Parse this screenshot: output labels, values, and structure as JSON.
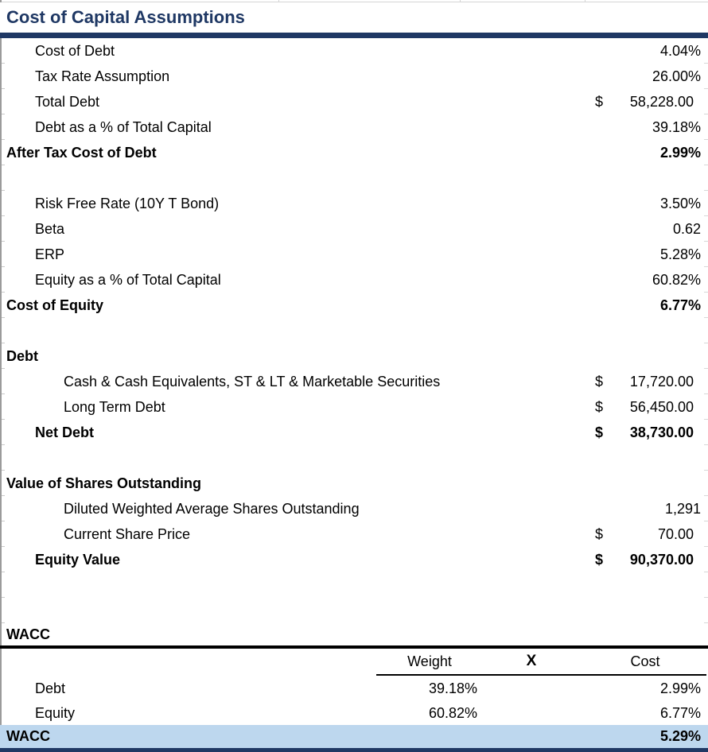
{
  "title": "Cost of Capital Assumptions",
  "colors": {
    "navy": "#1f3864",
    "highlight_blue": "#bdd7ee",
    "gridline_gray": "#d4d4d4"
  },
  "rows": [
    {
      "label": "Cost of Debt",
      "indent": 1,
      "value": "4.04%"
    },
    {
      "label": "Tax Rate Assumption",
      "indent": 1,
      "value": "26.00%"
    },
    {
      "label": "Total Debt",
      "indent": 1,
      "currency": "$",
      "value": "58,228.00"
    },
    {
      "label": "Debt as a % of Total Capital",
      "indent": 1,
      "value": "39.18%"
    },
    {
      "label": "After Tax Cost of Debt",
      "indent": 0,
      "bold": true,
      "value": "2.99%"
    },
    {
      "blank": true
    },
    {
      "label": "Risk Free Rate (10Y T Bond)",
      "indent": 1,
      "value": "3.50%"
    },
    {
      "label": "Beta",
      "indent": 1,
      "value": "0.62"
    },
    {
      "label": "ERP",
      "indent": 1,
      "value": "5.28%"
    },
    {
      "label": "Equity as a % of Total Capital",
      "indent": 1,
      "value": "60.82%"
    },
    {
      "label": "Cost of Equity",
      "indent": 0,
      "bold": true,
      "value": "6.77%"
    },
    {
      "blank": true
    },
    {
      "label": "Debt",
      "indent": 0,
      "bold": true
    },
    {
      "label": "Cash & Cash Equivalents, ST & LT & Marketable Securities",
      "indent": 2,
      "currency": "$",
      "value": "17,720.00"
    },
    {
      "label": "Long Term Debt",
      "indent": 2,
      "currency": "$",
      "value": "56,450.00"
    },
    {
      "label": "Net Debt",
      "indent": 1,
      "bold": true,
      "currency": "$",
      "value": "38,730.00"
    },
    {
      "blank": true
    },
    {
      "label": "Value of Shares Outstanding",
      "indent": 0,
      "bold": true
    },
    {
      "label": "Diluted Weighted Average Shares Outstanding",
      "indent": 2,
      "value": "1,291"
    },
    {
      "label": "Current Share Price",
      "indent": 2,
      "currency": "$",
      "value": "70.00"
    },
    {
      "label": "Equity Value",
      "indent": 1,
      "bold": true,
      "currency": "$",
      "value": "90,370.00"
    },
    {
      "blank": true
    },
    {
      "blank": true
    }
  ],
  "wacc_table": {
    "section_label": "WACC",
    "headers": {
      "weight": "Weight",
      "multiply": "X",
      "cost": "Cost"
    },
    "rows": [
      {
        "label": "Debt",
        "weight": "39.18%",
        "cost": "2.99%"
      },
      {
        "label": "Equity",
        "weight": "60.82%",
        "cost": "6.77%"
      }
    ],
    "total": {
      "label": "WACC",
      "cost": "5.29%"
    }
  }
}
